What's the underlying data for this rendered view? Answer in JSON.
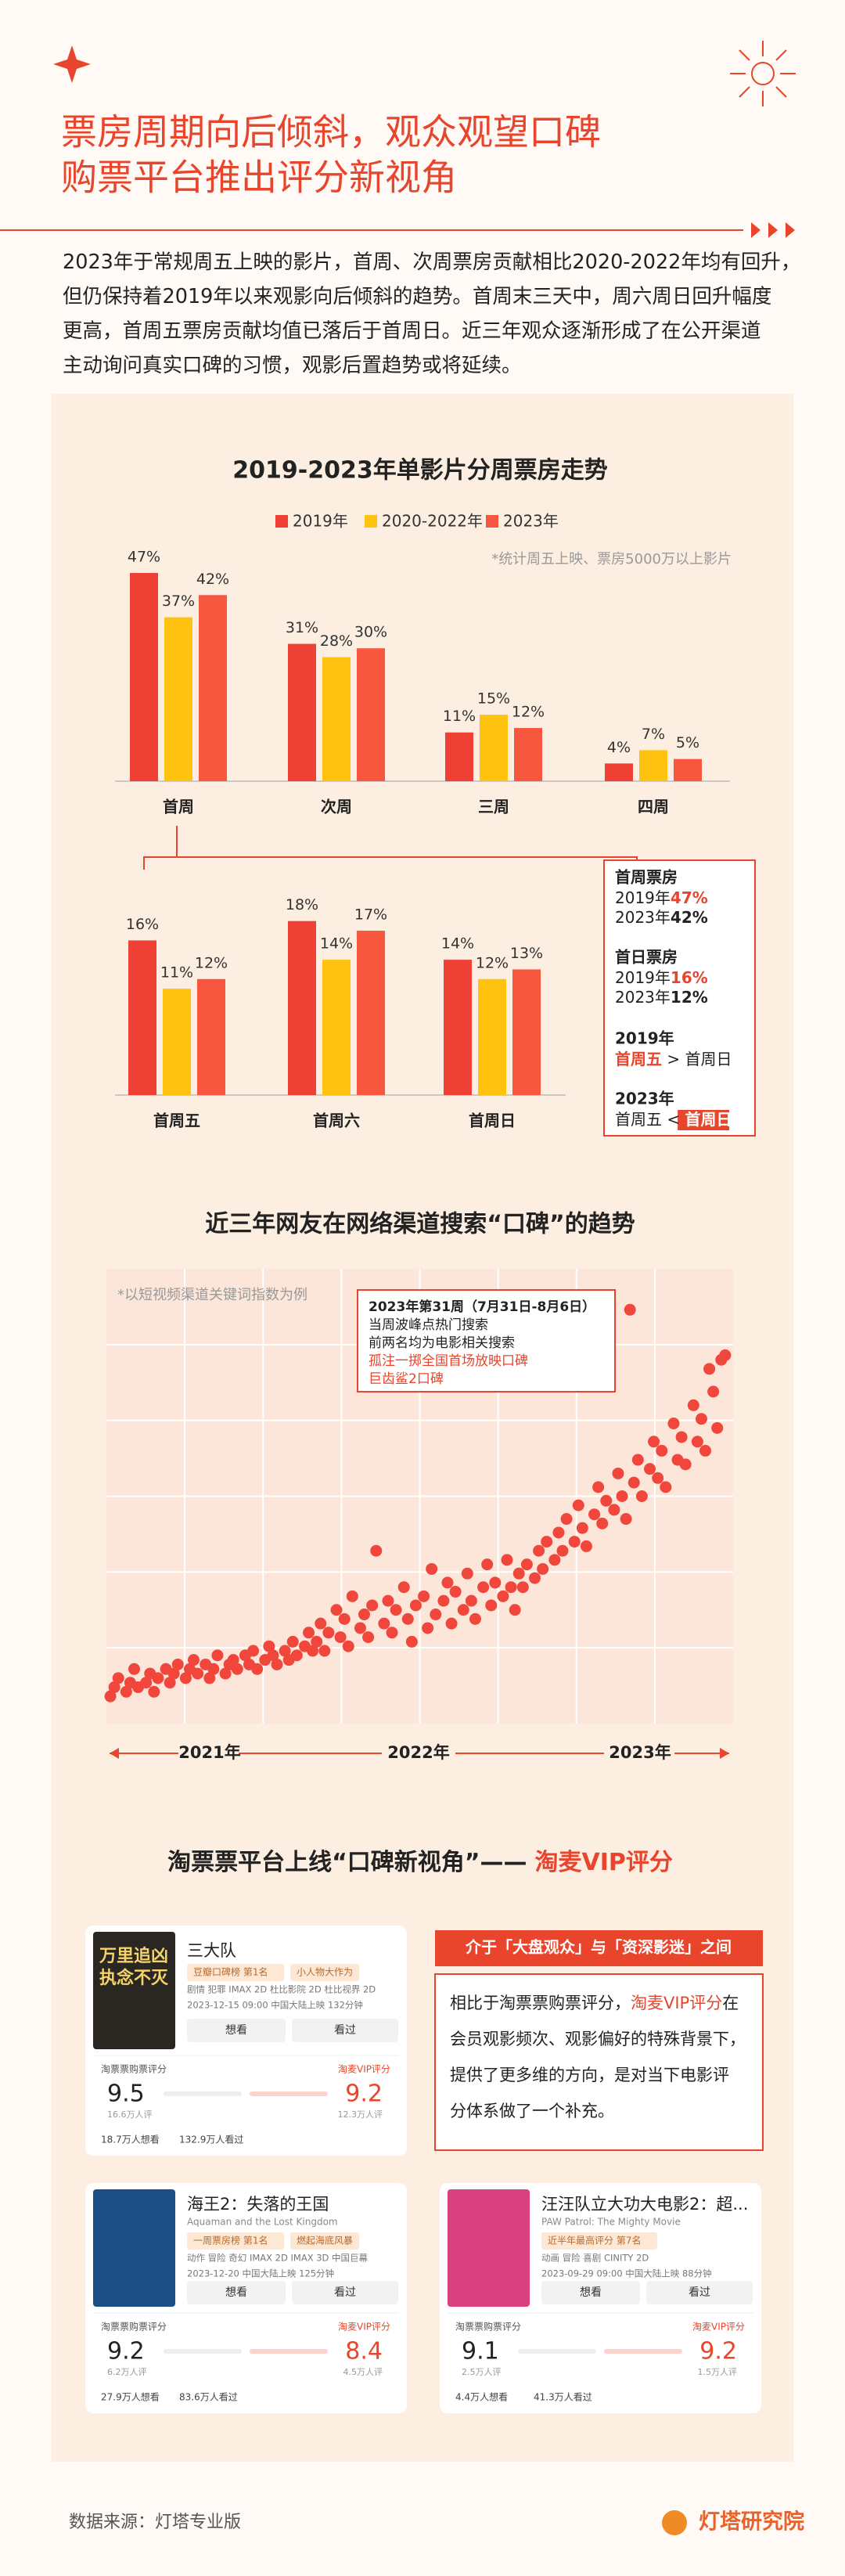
{
  "header": {
    "title_lines": [
      "票房周期向后倾斜，观众观望口碑",
      "购票平台推出评分新视角"
    ]
  },
  "intro": {
    "lines": [
      "2023年于常规周五上映的影片，首周、次周票房贡献相比2020-2022年均有回升，",
      "但仍保持着2019年以来观影向后倾斜的趋势。首周末三天中，周六周日回升幅度",
      "更高，首周五票房贡献均值已落后于首周日。近三年观众逐渐形成了在公开渠道",
      "主动询问真实口碑的习惯，观影后置趋势或将延续。"
    ]
  },
  "chart_data": [
    {
      "type": "bar",
      "title": "2019-2023年单影片分周票房走势",
      "note": "*统计周五上映、票房5000万以上影片",
      "categories": [
        "首周",
        "次周",
        "三周",
        "四周"
      ],
      "series": [
        {
          "name": "2019年",
          "color": "#ee4035",
          "values": [
            47,
            31,
            11,
            4
          ],
          "value_labels": [
            "47%",
            "31%",
            "11%",
            "4%"
          ]
        },
        {
          "name": "2020-2022年",
          "color": "#fec20f",
          "values": [
            37,
            28,
            15,
            7
          ],
          "value_labels": [
            "37%",
            "28%",
            "15%",
            "7%"
          ]
        },
        {
          "name": "2023年",
          "color": "#f7573f",
          "values": [
            42,
            30,
            12,
            5
          ],
          "value_labels": [
            "42%",
            "30%",
            "12%",
            "5%"
          ]
        }
      ],
      "ylim": [
        0,
        50
      ],
      "legend": "top"
    },
    {
      "type": "bar",
      "categories": [
        "首周五",
        "首周六",
        "首周日"
      ],
      "series": [
        {
          "color": "#ee4035",
          "values": [
            16,
            18,
            14
          ],
          "value_labels": [
            "16%",
            "18%",
            "14%"
          ]
        },
        {
          "color": "#fec20f",
          "values": [
            11,
            14,
            12
          ],
          "value_labels": [
            "11%",
            "14%",
            "12%"
          ]
        },
        {
          "color": "#f7573f",
          "values": [
            12,
            17,
            13
          ],
          "value_labels": [
            "12%",
            "17%",
            "13%"
          ]
        }
      ],
      "ylim": [
        0,
        20
      ]
    },
    {
      "type": "scatter",
      "title": "近三年网友在网络渠道搜索“口碑”的趋势",
      "note": "*以短视频渠道关键词指数为例",
      "color": "#f0463c",
      "x": [
        1,
        2,
        3,
        5,
        6,
        7,
        8,
        10,
        11,
        12,
        13,
        15,
        16,
        17,
        18,
        20,
        21,
        22,
        23,
        25,
        26,
        27,
        28,
        30,
        31,
        32,
        33,
        35,
        36,
        37,
        38,
        40,
        41,
        42,
        43,
        45,
        46,
        47,
        48,
        50,
        51,
        52,
        53,
        54,
        55,
        56,
        58,
        59,
        60,
        61,
        62,
        64,
        65,
        66,
        67,
        68,
        70,
        71,
        72,
        73,
        75,
        76,
        77,
        78,
        80,
        81,
        82,
        83,
        85,
        86,
        87,
        88,
        90,
        91,
        92,
        93,
        95,
        96,
        97,
        98,
        100,
        101,
        102,
        103,
        104,
        105,
        106,
        108,
        109,
        110,
        111,
        113,
        114,
        115,
        116,
        118,
        119,
        120,
        121,
        123,
        124,
        125,
        126,
        128,
        129,
        130,
        131,
        132,
        133,
        134,
        135,
        137,
        138,
        139,
        140,
        141,
        143,
        144,
        145,
        146,
        148,
        149,
        150,
        151,
        152,
        153,
        154,
        155,
        156
      ],
      "values": [
        6,
        8,
        10,
        7,
        9,
        12,
        8,
        9,
        11,
        7,
        10,
        12,
        9,
        11,
        13,
        10,
        12,
        14,
        11,
        13,
        10,
        12,
        15,
        11,
        13,
        14,
        12,
        15,
        13,
        16,
        12,
        14,
        17,
        15,
        13,
        16,
        14,
        18,
        15,
        17,
        20,
        16,
        18,
        22,
        16,
        20,
        25,
        19,
        23,
        17,
        28,
        21,
        24,
        19,
        26,
        38,
        22,
        27,
        20,
        25,
        30,
        23,
        18,
        26,
        28,
        21,
        34,
        24,
        27,
        31,
        22,
        29,
        25,
        33,
        27,
        23,
        30,
        35,
        26,
        31,
        28,
        36,
        30,
        25,
        33,
        30,
        35,
        32,
        38,
        34,
        40,
        36,
        42,
        38,
        45,
        40,
        48,
        43,
        39,
        46,
        52,
        44,
        49,
        47,
        55,
        50,
        45,
        91,
        53,
        58,
        50,
        56,
        62,
        54,
        60,
        52,
        66,
        58,
        63,
        57,
        70,
        62,
        67,
        60,
        78,
        73,
        65,
        80,
        81
      ],
      "xlim": [
        0,
        158
      ],
      "ylim": [
        0,
        100
      ],
      "period_labels": [
        "2021年",
        "2022年",
        "2023年"
      ],
      "annotation": {
        "lines": [
          "2023年第31周（7月31日-8月6日）",
          "当周波峰点热门搜索",
          "前两名均为电影相关搜索",
          "孤注一掷全国首场放映口碑",
          "巨齿鲨2口碑"
        ],
        "styles": [
          "bold",
          "normal",
          "normal",
          "red",
          "red"
        ]
      }
    }
  ],
  "callout": {
    "blocks": [
      {
        "head": "首周票房",
        "rows": [
          [
            {
              "text": "2019年"
            },
            {
              "text": "47%",
              "style": "red"
            }
          ],
          [
            {
              "text": "2023年"
            },
            {
              "text": "42%",
              "style": "bold"
            }
          ]
        ]
      },
      {
        "head": "首日票房",
        "rows": [
          [
            {
              "text": "2019年"
            },
            {
              "text": "16%",
              "style": "red"
            }
          ],
          [
            {
              "text": "2023年"
            },
            {
              "text": "12%",
              "style": "bold"
            }
          ]
        ]
      },
      {
        "head": "2019年",
        "rows": [
          [
            {
              "text": "首周五",
              "style": "red"
            },
            {
              "text": " > 首周日"
            }
          ]
        ]
      },
      {
        "head": "2023年",
        "rows": [
          [
            {
              "text": "首周五 < "
            },
            {
              "text": "首周日",
              "style": "badge"
            }
          ]
        ]
      }
    ]
  },
  "section3": {
    "title": "淘票票平台上线“口碑新视角”——",
    "highlight": "淘麦VIP评分"
  },
  "comparison": {
    "heading": "介于「大盘观众」与「资深影迷」之间",
    "lines": [
      [
        "相比于淘票票购票评分，",
        "淘麦VIP评分",
        "在"
      ],
      [
        "会员观影频次、观影偏好的特殊背景下，"
      ],
      [
        "提供了更多维的方向，是对当下电影评"
      ],
      [
        "分体系做了一个补充。"
      ]
    ]
  },
  "cards": [
    {
      "title": "三大队",
      "poster_lines": [
        "万里追凶",
        "执念不灭"
      ],
      "poster_color": "#2a2622",
      "tags": [
        "豆瓣口碑榜 第1名",
        "小人物大作为"
      ],
      "info": "剧情 犯罪 IMAX 2D 杜比影院 2D 杜比视界 2D",
      "date": "2023-12-15 09:00 中国大陆上映 132分钟",
      "want_button": "想看",
      "seen_button": "看过",
      "rating_a_label": "淘票票购票评分",
      "rating_a": "9.5",
      "rating_a_count": "16.6万人评",
      "rating_b_label": "淘麦VIP评分",
      "rating_b": "9.2",
      "rating_b_count": "12.3万人评",
      "wants": "18.7万人想看",
      "seen": "132.9万人看过"
    },
    {
      "title": "海王2：失落的王国",
      "subtitle": "Aquaman and the Lost Kingdom",
      "poster_color": "#1c4f86",
      "tags": [
        "一周票房榜 第1名",
        "燃起海底风暴"
      ],
      "info": "动作 冒险 奇幻 IMAX 2D IMAX 3D 中国巨幕",
      "date": "2023-12-20 中国大陆上映 125分钟",
      "want_button": "想看",
      "seen_button": "看过",
      "rating_a_label": "淘票票购票评分",
      "rating_a": "9.2",
      "rating_a_count": "6.2万人评",
      "rating_b_label": "淘麦VIP评分",
      "rating_b": "8.4",
      "rating_b_count": "4.5万人评",
      "wants": "27.9万人想看",
      "seen": "83.6万人看过"
    },
    {
      "title": "汪汪队立大功大电影2：超...",
      "subtitle": "PAW Patrol: The Mighty Movie",
      "poster_color": "#d9407e",
      "tags": [
        "近半年最高评分 第7名"
      ],
      "info": "动画 冒险 喜剧 CINITY 2D",
      "date": "2023-09-29 09:00 中国大陆上映 88分钟",
      "want_button": "想看",
      "seen_button": "看过",
      "rating_a_label": "淘票票购票评分",
      "rating_a": "9.1",
      "rating_a_count": "2.5万人评",
      "rating_b_label": "淘麦VIP评分",
      "rating_b": "9.2",
      "rating_b_count": "1.5万人评",
      "wants": "4.4万人想看",
      "seen": "41.3万人看过"
    }
  ],
  "footer": {
    "source": "数据来源：灯塔专业版",
    "brand": "灯塔研究院"
  }
}
